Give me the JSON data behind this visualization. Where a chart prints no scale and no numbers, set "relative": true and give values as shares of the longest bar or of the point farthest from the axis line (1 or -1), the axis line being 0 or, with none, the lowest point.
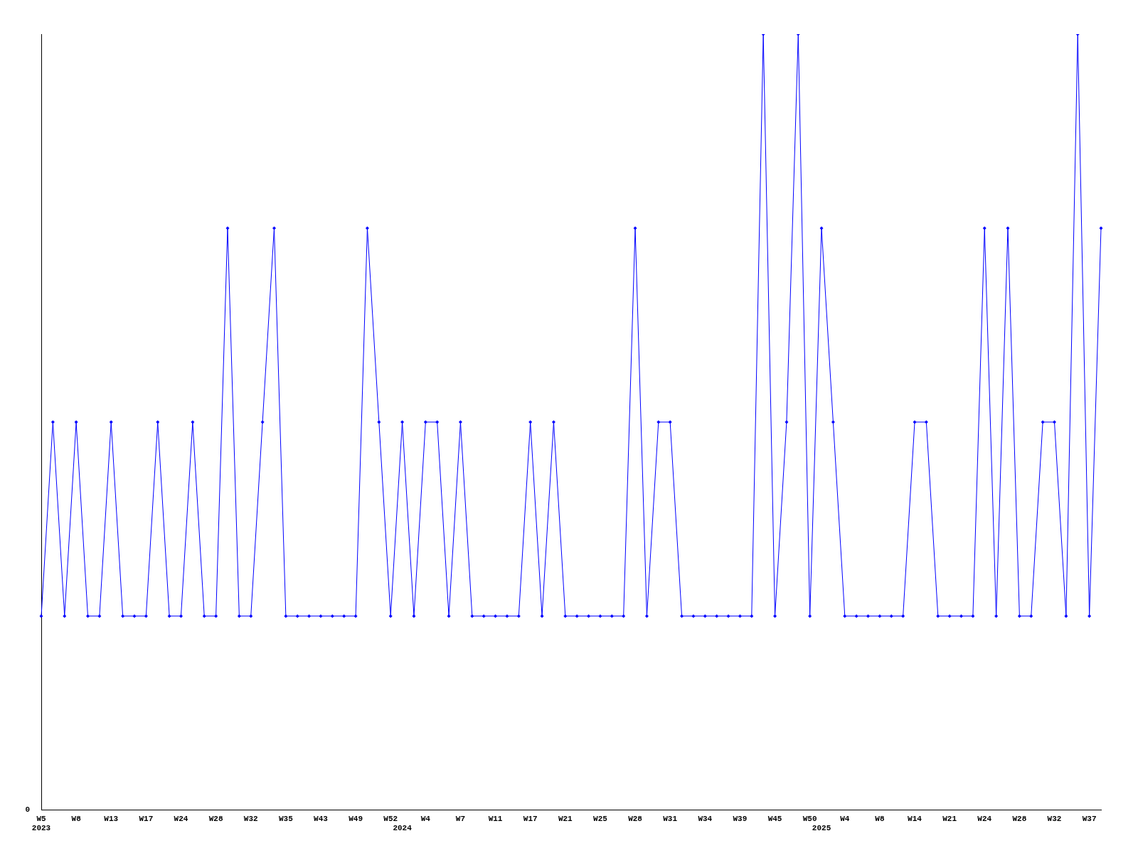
{
  "chart_data": {
    "type": "line",
    "relative": true,
    "marker": "diamond",
    "line_style": "solid",
    "grid": false,
    "legend": false,
    "categories": [
      "W5\n2023",
      null,
      null,
      "W8",
      null,
      null,
      "W13",
      null,
      null,
      "W17",
      null,
      null,
      "W24",
      null,
      null,
      "W28",
      null,
      null,
      "W32",
      null,
      null,
      "W35",
      null,
      null,
      "W43",
      null,
      null,
      "W49",
      null,
      null,
      "W52",
      "\n2024",
      null,
      "W4",
      null,
      null,
      "W7",
      null,
      null,
      "W11",
      null,
      null,
      "W17",
      null,
      null,
      "W21",
      null,
      null,
      "W25",
      null,
      null,
      "W28",
      null,
      null,
      "W31",
      null,
      null,
      "W34",
      null,
      null,
      "W39",
      null,
      null,
      "W45",
      null,
      null,
      "W50",
      "\n2025",
      null,
      "W4",
      null,
      null,
      "W8",
      null,
      null,
      "W14",
      null,
      null,
      "W21",
      null,
      null,
      "W24",
      null,
      null,
      "W28",
      null,
      null,
      "W32",
      null,
      null,
      "W37",
      null
    ],
    "series": [
      {
        "color": "#0000ff",
        "values": [
          0.25,
          0.5,
          0.25,
          0.5,
          0.25,
          0.25,
          0.5,
          0.25,
          0.25,
          0.25,
          0.5,
          0.25,
          0.25,
          0.5,
          0.25,
          0.25,
          0.75,
          0.25,
          0.25,
          0.5,
          0.75,
          0.25,
          0.25,
          0.25,
          0.25,
          0.25,
          0.25,
          0.25,
          0.75,
          0.5,
          0.25,
          0.5,
          0.25,
          0.5,
          0.5,
          0.25,
          0.5,
          0.25,
          0.25,
          0.25,
          0.25,
          0.25,
          0.5,
          0.25,
          0.5,
          0.25,
          0.25,
          0.25,
          0.25,
          0.25,
          0.25,
          0.75,
          0.25,
          0.5,
          0.5,
          0.25,
          0.25,
          0.25,
          0.25,
          0.25,
          0.25,
          0.25,
          1,
          0.25,
          0.5,
          1,
          0.25,
          0.75,
          0.5,
          0.25,
          0.25,
          0.25,
          0.25,
          0.25,
          0.25,
          0.5,
          0.5,
          0.25,
          0.25,
          0.25,
          0.25,
          0.75,
          0.25,
          0.75,
          0.25,
          0.25,
          0.5,
          0.5,
          0.25,
          1,
          0.25,
          0.75
        ]
      }
    ],
    "annotations": [
      "0"
    ]
  }
}
